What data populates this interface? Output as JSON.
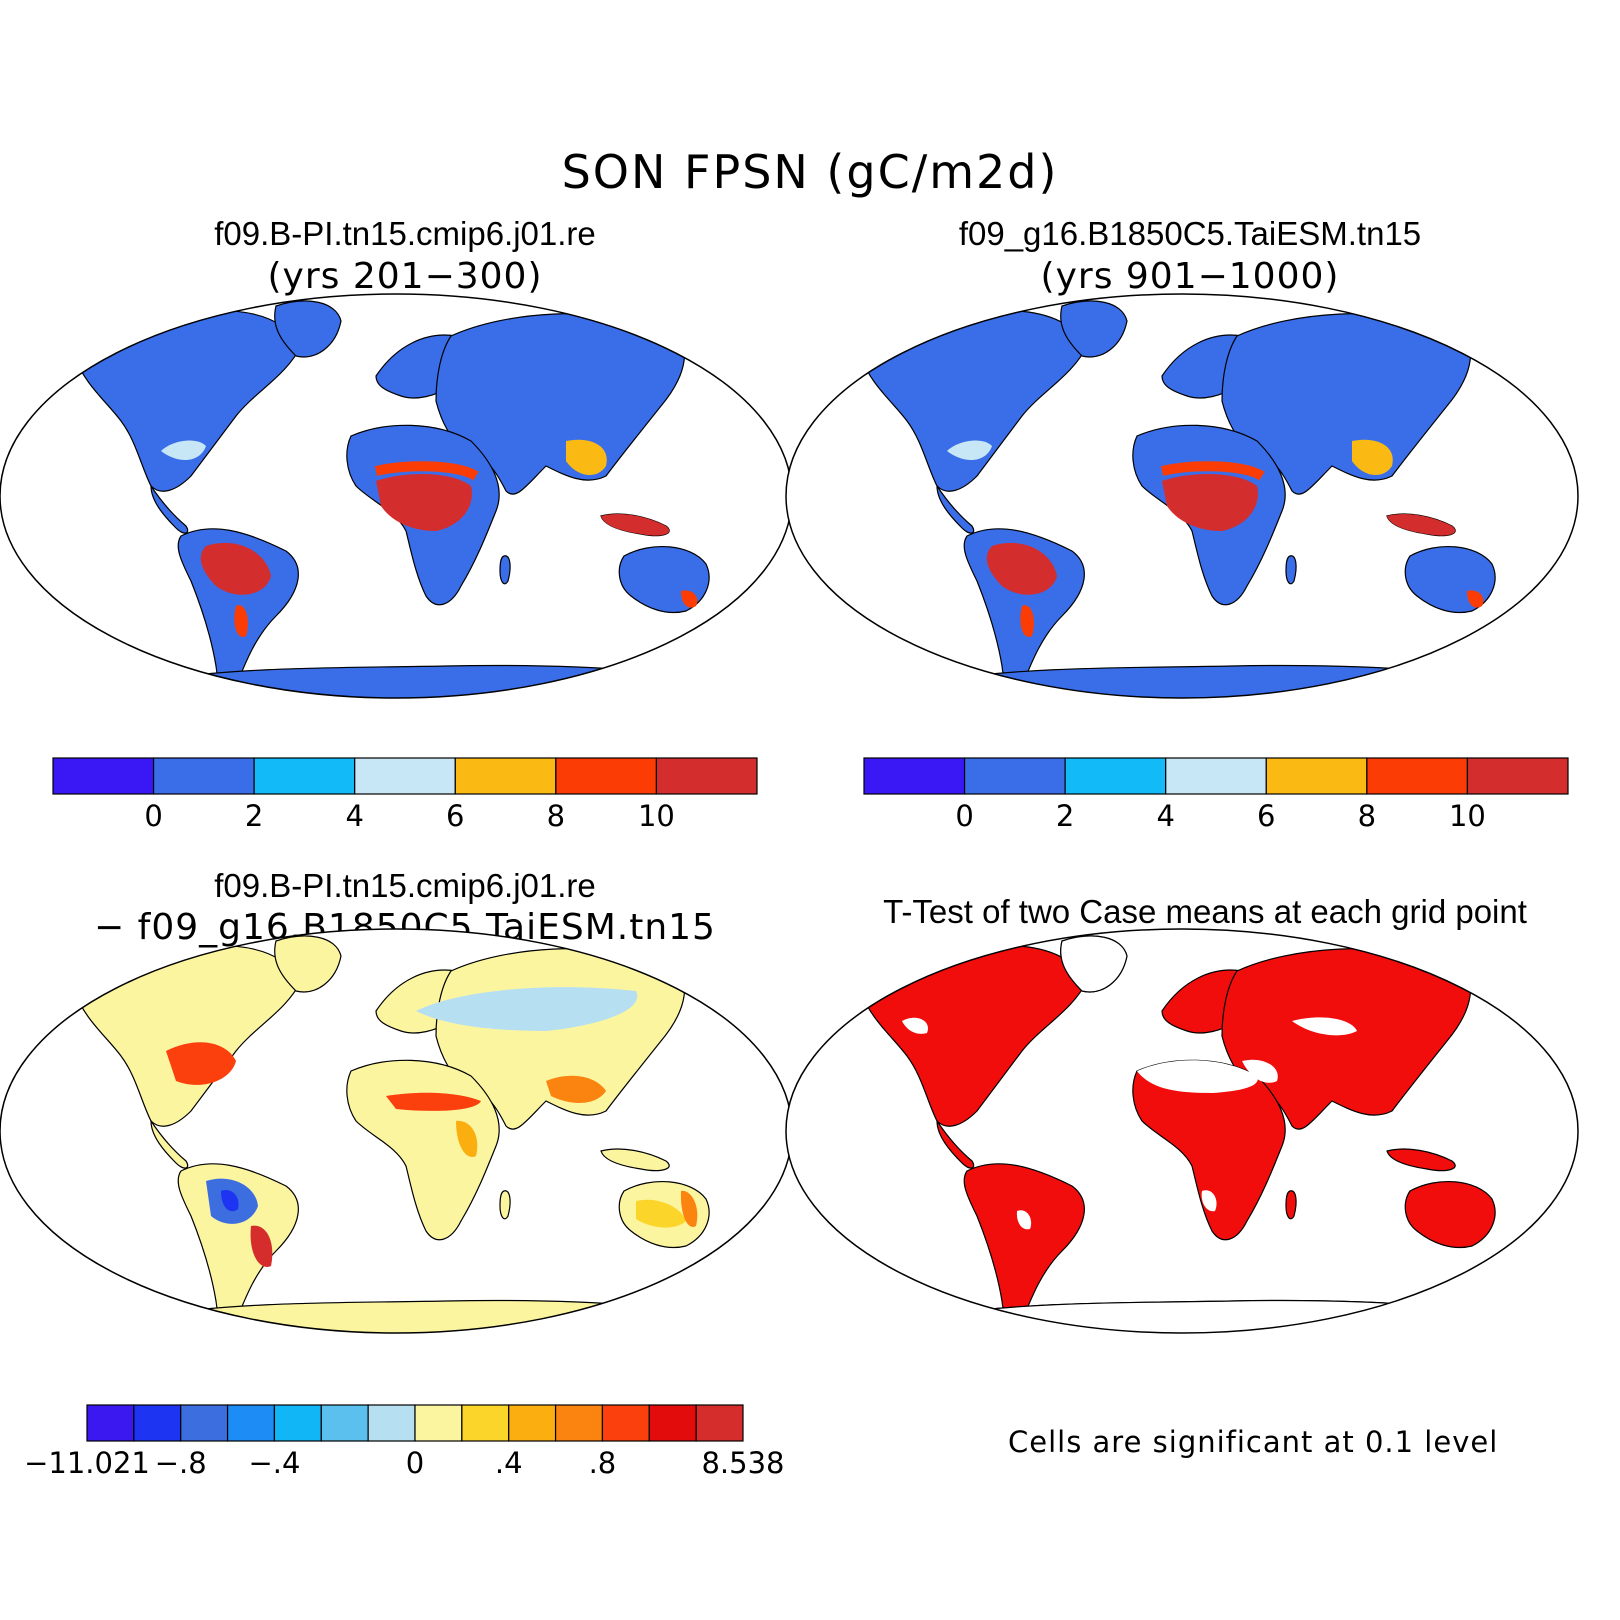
{
  "figure": {
    "title": "SON FPSN (gC/m2d)"
  },
  "panels": [
    {
      "title": "f09.B-PI.tn15.cmip6.j01.re",
      "subtitle": "(yrs 201−300)"
    },
    {
      "title": "f09_g16.B1850C5.TaiESM.tn15",
      "subtitle": "(yrs 901−1000)"
    },
    {
      "title": "f09.B-PI.tn15.cmip6.j01.re",
      "subtitle": "− f09_g16.B1850C5.TaiESM.tn15"
    },
    {
      "title": "T-Test of two Case means at each grid point",
      "subtitle": ""
    }
  ],
  "colorbars": {
    "mean": {
      "colors": [
        "#3a18f5",
        "#3a6ee8",
        "#12baf7",
        "#c7e6f6",
        "#fbb914",
        "#fb3d05",
        "#d42d2d"
      ],
      "labels": [
        "0",
        "2",
        "4",
        "6",
        "8",
        "10"
      ]
    },
    "diff": {
      "colors": [
        "#3b18f0",
        "#1d35f2",
        "#3c6ee0",
        "#1e8cf5",
        "#10b6f5",
        "#5cc0ef",
        "#b7dff2",
        "#fcf5a0",
        "#fbd52a",
        "#fbae10",
        "#fb8310",
        "#fb3f0d",
        "#e30c0c",
        "#d52c2c"
      ],
      "labels": [
        "−11.021",
        "−.8",
        "−.4",
        "0",
        ".4",
        ".8",
        "8.538"
      ],
      "label_positions": [
        0,
        2,
        4,
        7,
        9,
        11,
        14
      ]
    }
  },
  "significance_note": "Cells are significant at 0.1 level",
  "colors": {
    "ocean": "#ffffff",
    "land_mean": "#3a6ee8",
    "land_diff": "#fcf5a0",
    "significant": "#f20d0d"
  }
}
